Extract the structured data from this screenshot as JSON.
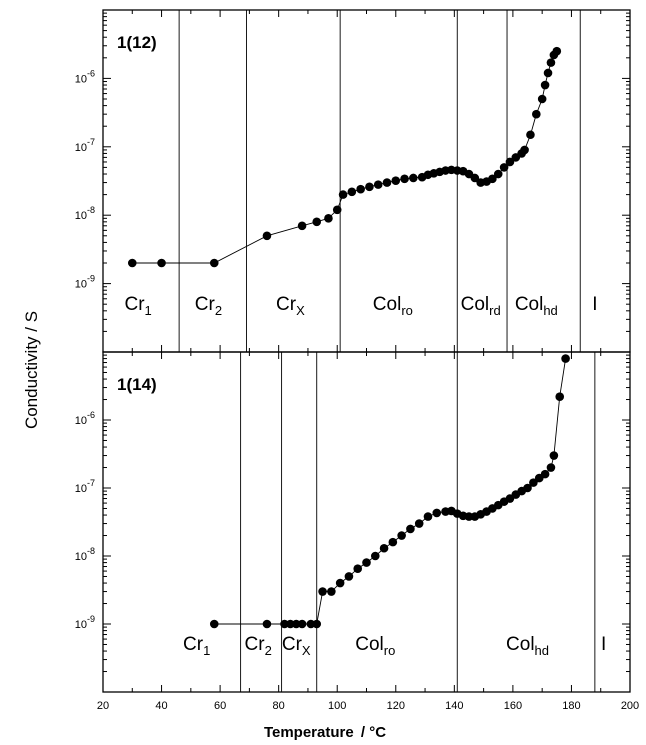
{
  "chart_data": [
    {
      "type": "scatter",
      "panel_label": "1(12)",
      "x_unit": "°C",
      "y_scale": "log",
      "xlim": [
        20,
        200
      ],
      "ylim_exp": [
        -10,
        -5
      ],
      "y_tick_labels": [
        {
          "exp": -6,
          "base": "10",
          "sup": "-6"
        },
        {
          "exp": -7,
          "base": "10",
          "sup": "-7"
        },
        {
          "exp": -8,
          "base": "10",
          "sup": "-8"
        },
        {
          "exp": -9,
          "base": "10",
          "sup": "-9"
        }
      ],
      "phase_boundaries": [
        46,
        69,
        101,
        141,
        158,
        183
      ],
      "phases": [
        {
          "main": "Cr",
          "sub": "1",
          "x": 32
        },
        {
          "main": "Cr",
          "sub": "2",
          "x": 56
        },
        {
          "main": "Cr",
          "sub": "X",
          "x": 84
        },
        {
          "main": "Col",
          "sub": "ro",
          "x": 119
        },
        {
          "main": "Col",
          "sub": "rd",
          "x": 149
        },
        {
          "main": "Col",
          "sub": "hd",
          "x": 168
        },
        {
          "main": "I",
          "sub": "",
          "x": 188
        }
      ],
      "series": [
        {
          "points": [
            [
              30,
              2e-09
            ],
            [
              40,
              2e-09
            ],
            [
              58,
              2e-09
            ],
            [
              76,
              5e-09
            ],
            [
              88,
              7e-09
            ],
            [
              93,
              8e-09
            ],
            [
              97,
              9e-09
            ],
            [
              100,
              1.2e-08
            ],
            [
              102,
              2e-08
            ],
            [
              105,
              2.2e-08
            ],
            [
              108,
              2.4e-08
            ],
            [
              111,
              2.6e-08
            ],
            [
              114,
              2.8e-08
            ],
            [
              117,
              3e-08
            ],
            [
              120,
              3.2e-08
            ],
            [
              123,
              3.4e-08
            ],
            [
              126,
              3.5e-08
            ],
            [
              129,
              3.6e-08
            ],
            [
              131,
              3.9e-08
            ],
            [
              133,
              4.1e-08
            ],
            [
              135,
              4.3e-08
            ],
            [
              137,
              4.5e-08
            ],
            [
              139,
              4.6e-08
            ],
            [
              141,
              4.5e-08
            ],
            [
              143,
              4.4e-08
            ],
            [
              145,
              4e-08
            ],
            [
              147,
              3.5e-08
            ],
            [
              149,
              3e-08
            ],
            [
              151,
              3.1e-08
            ],
            [
              153,
              3.4e-08
            ],
            [
              155,
              4e-08
            ],
            [
              157,
              5e-08
            ],
            [
              159,
              6e-08
            ],
            [
              161,
              7e-08
            ],
            [
              163,
              8e-08
            ],
            [
              164,
              9e-08
            ],
            [
              166,
              1.5e-07
            ],
            [
              168,
              3e-07
            ],
            [
              170,
              5e-07
            ],
            [
              171,
              8e-07
            ],
            [
              172,
              1.2e-06
            ],
            [
              173,
              1.7e-06
            ],
            [
              174,
              2.2e-06
            ],
            [
              175,
              2.5e-06
            ]
          ]
        }
      ]
    },
    {
      "type": "scatter",
      "panel_label": "1(14)",
      "x_unit": "°C",
      "y_scale": "log",
      "xlim": [
        20,
        200
      ],
      "ylim_exp": [
        -10,
        -5
      ],
      "y_tick_labels": [
        {
          "exp": -6,
          "base": "10",
          "sup": "-6"
        },
        {
          "exp": -7,
          "base": "10",
          "sup": "-7"
        },
        {
          "exp": -8,
          "base": "10",
          "sup": "-8"
        },
        {
          "exp": -9,
          "base": "10",
          "sup": "-9"
        }
      ],
      "x_tick_labels": [
        "20",
        "40",
        "60",
        "80",
        "100",
        "120",
        "140",
        "160",
        "180",
        "200"
      ],
      "phase_boundaries": [
        67,
        81,
        93,
        141,
        188
      ],
      "phases": [
        {
          "main": "Cr",
          "sub": "1",
          "x": 52
        },
        {
          "main": "Cr",
          "sub": "2",
          "x": 73
        },
        {
          "main": "Cr",
          "sub": "X",
          "x": 86
        },
        {
          "main": "Col",
          "sub": "ro",
          "x": 113
        },
        {
          "main": "Col",
          "sub": "hd",
          "x": 165
        },
        {
          "main": "I",
          "sub": "",
          "x": 191
        }
      ],
      "series": [
        {
          "points": [
            [
              58,
              1e-09
            ],
            [
              76,
              1e-09
            ],
            [
              82,
              1e-09
            ],
            [
              84,
              1e-09
            ],
            [
              86,
              1e-09
            ],
            [
              88,
              1e-09
            ],
            [
              91,
              1e-09
            ],
            [
              93,
              1e-09
            ],
            [
              95,
              3e-09
            ],
            [
              98,
              3e-09
            ],
            [
              101,
              4e-09
            ],
            [
              104,
              5e-09
            ],
            [
              107,
              6.5e-09
            ],
            [
              110,
              8e-09
            ],
            [
              113,
              1e-08
            ],
            [
              116,
              1.3e-08
            ],
            [
              119,
              1.6e-08
            ],
            [
              122,
              2e-08
            ],
            [
              125,
              2.5e-08
            ],
            [
              128,
              3e-08
            ],
            [
              131,
              3.8e-08
            ],
            [
              134,
              4.3e-08
            ],
            [
              137,
              4.5e-08
            ],
            [
              139,
              4.6e-08
            ],
            [
              141,
              4.2e-08
            ],
            [
              143,
              3.9e-08
            ],
            [
              145,
              3.8e-08
            ],
            [
              147,
              3.8e-08
            ],
            [
              149,
              4.1e-08
            ],
            [
              151,
              4.5e-08
            ],
            [
              153,
              5e-08
            ],
            [
              155,
              5.6e-08
            ],
            [
              157,
              6.3e-08
            ],
            [
              159,
              7e-08
            ],
            [
              161,
              8e-08
            ],
            [
              163,
              9e-08
            ],
            [
              165,
              1e-07
            ],
            [
              167,
              1.2e-07
            ],
            [
              169,
              1.4e-07
            ],
            [
              171,
              1.6e-07
            ],
            [
              173,
              2e-07
            ],
            [
              174,
              3e-07
            ],
            [
              176,
              2.2e-06
            ],
            [
              178,
              8e-06
            ]
          ]
        }
      ]
    }
  ],
  "axes": {
    "xlabel": "Temperature",
    "xlabel_sep": "/",
    "xlabel_unit": "°C",
    "ylabel": "Conductivity / S"
  }
}
